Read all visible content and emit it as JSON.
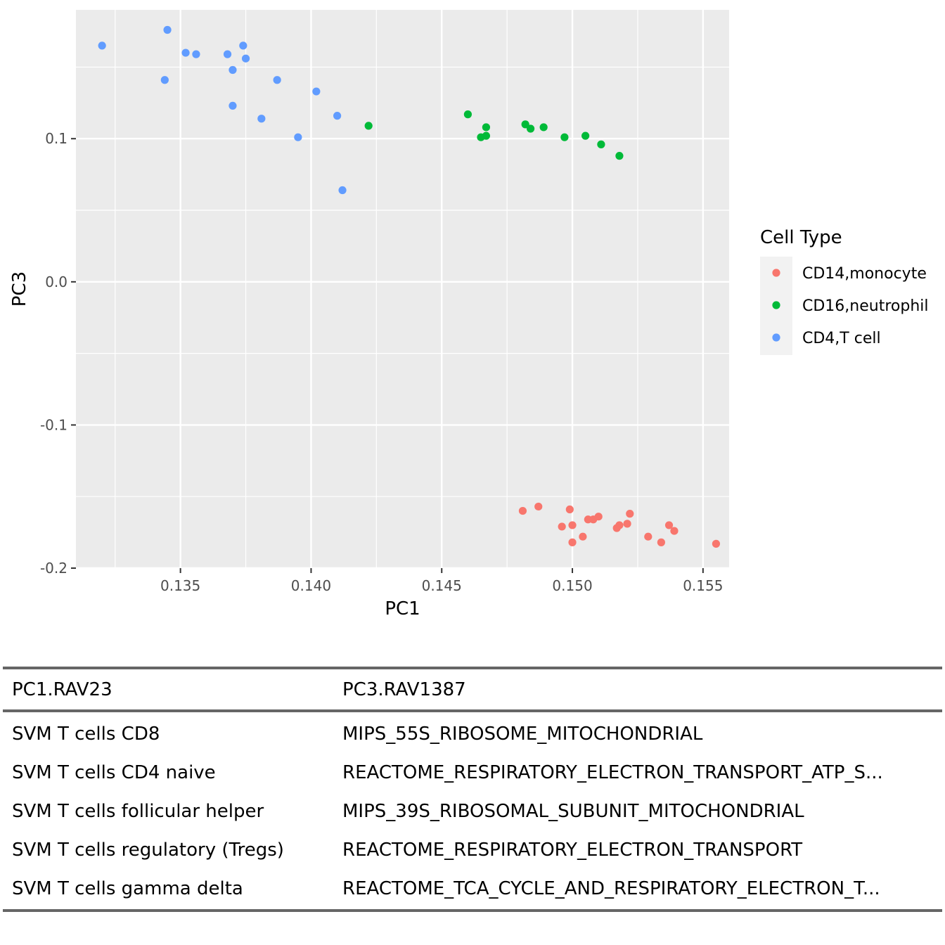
{
  "chart_data": {
    "type": "scatter",
    "xlabel": "PC1",
    "ylabel": "PC3",
    "xlim": [
      0.131,
      0.156
    ],
    "ylim": [
      -0.2,
      0.19
    ],
    "x_ticks": [
      0.135,
      0.14,
      0.145,
      0.15,
      0.155
    ],
    "x_tick_labels": [
      "0.135",
      "0.140",
      "0.145",
      "0.150",
      "0.155"
    ],
    "y_ticks": [
      -0.2,
      -0.1,
      0.0,
      0.1
    ],
    "y_tick_labels": [
      "-0.2",
      "-0.1",
      "0.0",
      "0.1"
    ],
    "grid": true,
    "legend": {
      "title": "Cell Type",
      "position": "right"
    },
    "series": [
      {
        "name": "CD14,monocyte",
        "color": "#F8766D",
        "points": [
          [
            0.1481,
            -0.16
          ],
          [
            0.1487,
            -0.157
          ],
          [
            0.1496,
            -0.171
          ],
          [
            0.1499,
            -0.159
          ],
          [
            0.15,
            -0.17
          ],
          [
            0.15,
            -0.182
          ],
          [
            0.1504,
            -0.178
          ],
          [
            0.1506,
            -0.166
          ],
          [
            0.1508,
            -0.166
          ],
          [
            0.151,
            -0.164
          ],
          [
            0.1517,
            -0.172
          ],
          [
            0.1518,
            -0.17
          ],
          [
            0.1521,
            -0.169
          ],
          [
            0.1522,
            -0.162
          ],
          [
            0.1529,
            -0.178
          ],
          [
            0.1534,
            -0.182
          ],
          [
            0.1537,
            -0.17
          ],
          [
            0.1539,
            -0.174
          ],
          [
            0.1555,
            -0.183
          ]
        ]
      },
      {
        "name": "CD16,neutrophil",
        "color": "#00BA38",
        "points": [
          [
            0.1422,
            0.109
          ],
          [
            0.146,
            0.117
          ],
          [
            0.1465,
            0.101
          ],
          [
            0.1467,
            0.108
          ],
          [
            0.1467,
            0.102
          ],
          [
            0.1482,
            0.11
          ],
          [
            0.1484,
            0.107
          ],
          [
            0.1489,
            0.108
          ],
          [
            0.1497,
            0.101
          ],
          [
            0.1505,
            0.102
          ],
          [
            0.1511,
            0.096
          ],
          [
            0.1518,
            0.088
          ]
        ]
      },
      {
        "name": "CD4,T cell",
        "color": "#619CFF",
        "points": [
          [
            0.132,
            0.165
          ],
          [
            0.1344,
            0.141
          ],
          [
            0.1345,
            0.176
          ],
          [
            0.1352,
            0.16
          ],
          [
            0.1356,
            0.159
          ],
          [
            0.1368,
            0.159
          ],
          [
            0.137,
            0.148
          ],
          [
            0.137,
            0.123
          ],
          [
            0.1374,
            0.165
          ],
          [
            0.1375,
            0.156
          ],
          [
            0.1381,
            0.114
          ],
          [
            0.1387,
            0.141
          ],
          [
            0.1395,
            0.101
          ],
          [
            0.1402,
            0.133
          ],
          [
            0.141,
            0.116
          ],
          [
            0.1412,
            0.064
          ]
        ]
      }
    ]
  },
  "table": {
    "columns": [
      "PC1.RAV23",
      "PC3.RAV1387"
    ],
    "rows": [
      [
        "SVM T cells CD8",
        "MIPS_55S_RIBOSOME_MITOCHONDRIAL"
      ],
      [
        "SVM T cells CD4 naive",
        "REACTOME_RESPIRATORY_ELECTRON_TRANSPORT_ATP_S..."
      ],
      [
        "SVM T cells follicular helper",
        "MIPS_39S_RIBOSOMAL_SUBUNIT_MITOCHONDRIAL"
      ],
      [
        "SVM T cells regulatory (Tregs)",
        "REACTOME_RESPIRATORY_ELECTRON_TRANSPORT"
      ],
      [
        "SVM T cells gamma delta",
        "REACTOME_TCA_CYCLE_AND_RESPIRATORY_ELECTRON_T..."
      ]
    ]
  }
}
